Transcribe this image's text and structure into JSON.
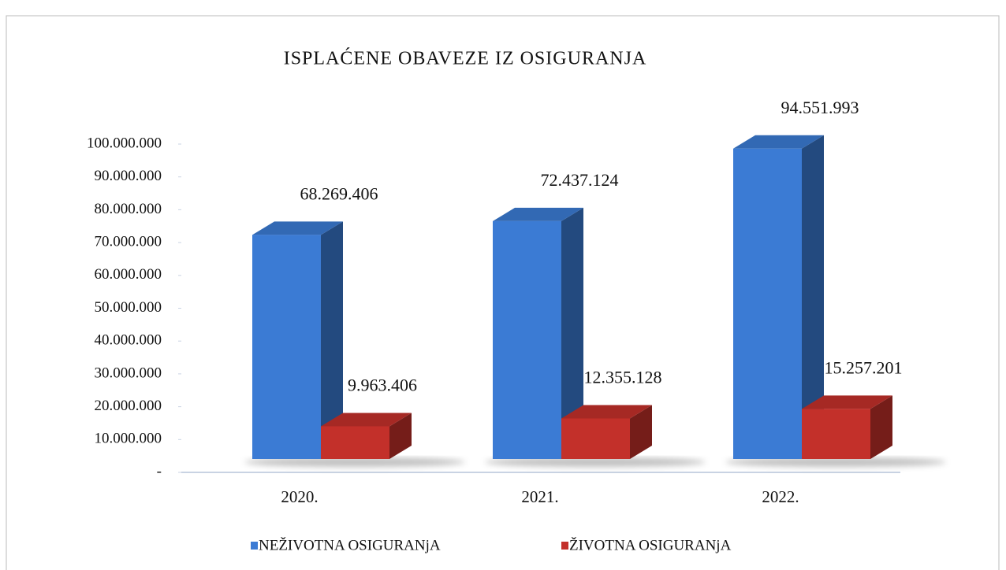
{
  "chart_data": {
    "type": "bar",
    "title": "ISPLAĆENE  OBAVEZE  IZ OSIGURANJA",
    "categories": [
      "2020.",
      "2021.",
      "2022."
    ],
    "series": [
      {
        "name": "NEŽIVOTNA OSIGURANjA",
        "color": "#3b7bd4",
        "values": [
          68269406,
          72437124,
          94551993
        ],
        "value_labels": [
          "68.269.406",
          "72.437.124",
          "94.551.993"
        ]
      },
      {
        "name": "ŽIVOTNA OSIGURANjA",
        "color": "#c3302a",
        "values": [
          9963406,
          12355128,
          15257201
        ],
        "value_labels": [
          "9.963.406",
          "12.355.128",
          "15.257.201"
        ]
      }
    ],
    "ylim": [
      0,
      100000000
    ],
    "yticks": [
      {
        "value": 0,
        "label": "-"
      },
      {
        "value": 10000000,
        "label": "10.000.000"
      },
      {
        "value": 20000000,
        "label": "20.000.000"
      },
      {
        "value": 30000000,
        "label": "30.000.000"
      },
      {
        "value": 40000000,
        "label": "40.000.000"
      },
      {
        "value": 50000000,
        "label": "50.000.000"
      },
      {
        "value": 60000000,
        "label": "60.000.000"
      },
      {
        "value": 70000000,
        "label": "70.000.000"
      },
      {
        "value": 80000000,
        "label": "80.000.000"
      },
      {
        "value": 90000000,
        "label": "90.000.000"
      },
      {
        "value": 100000000,
        "label": "100.000.000"
      }
    ],
    "legend": "bottom"
  }
}
